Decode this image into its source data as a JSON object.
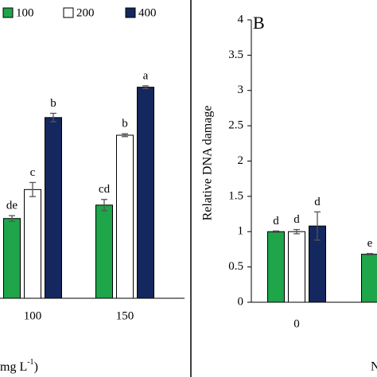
{
  "chart_data": [
    {
      "type": "bar",
      "categories": [
        "100",
        "150"
      ],
      "ylim": [
        0,
        4
      ],
      "legend": "top",
      "xlabel": "mg L",
      "xlabel_sup": "-1",
      "xlabel_end": ")",
      "series": [
        {
          "name": "100",
          "color": "#1fa54a",
          "values": [
            1.13,
            1.32
          ],
          "errors": [
            0.04,
            0.08
          ],
          "labels": [
            "de",
            "cd"
          ]
        },
        {
          "name": "200",
          "color": "#ffffff",
          "values": [
            1.54,
            2.31
          ],
          "errors": [
            0.1,
            0.02
          ],
          "labels": [
            "c",
            "b"
          ]
        },
        {
          "name": "400",
          "color": "#14275e",
          "values": [
            2.56,
            2.99
          ],
          "errors": [
            0.06,
            0.02
          ],
          "labels": [
            "b",
            "a"
          ]
        }
      ]
    },
    {
      "type": "bar",
      "panel": "B",
      "ylabel": "Relative DNA damage",
      "xlabel": "N",
      "categories": [
        "0",
        null
      ],
      "ylim": [
        0,
        4
      ],
      "yticks": [
        0,
        0.5,
        1,
        1.5,
        2,
        2.5,
        3,
        3.5,
        4
      ],
      "series": [
        {
          "color": "#1fa54a",
          "values": [
            1.0,
            0.68
          ],
          "errors": [
            0.01,
            0.01
          ],
          "labels": [
            "d",
            "e"
          ]
        },
        {
          "color": "#ffffff",
          "values": [
            1.0,
            null
          ],
          "errors": [
            0.03,
            null
          ],
          "labels": [
            "d",
            null
          ]
        },
        {
          "color": "#14275e",
          "values": [
            1.08,
            null
          ],
          "errors": [
            0.2,
            null
          ],
          "labels": [
            "d",
            null
          ]
        }
      ]
    }
  ]
}
